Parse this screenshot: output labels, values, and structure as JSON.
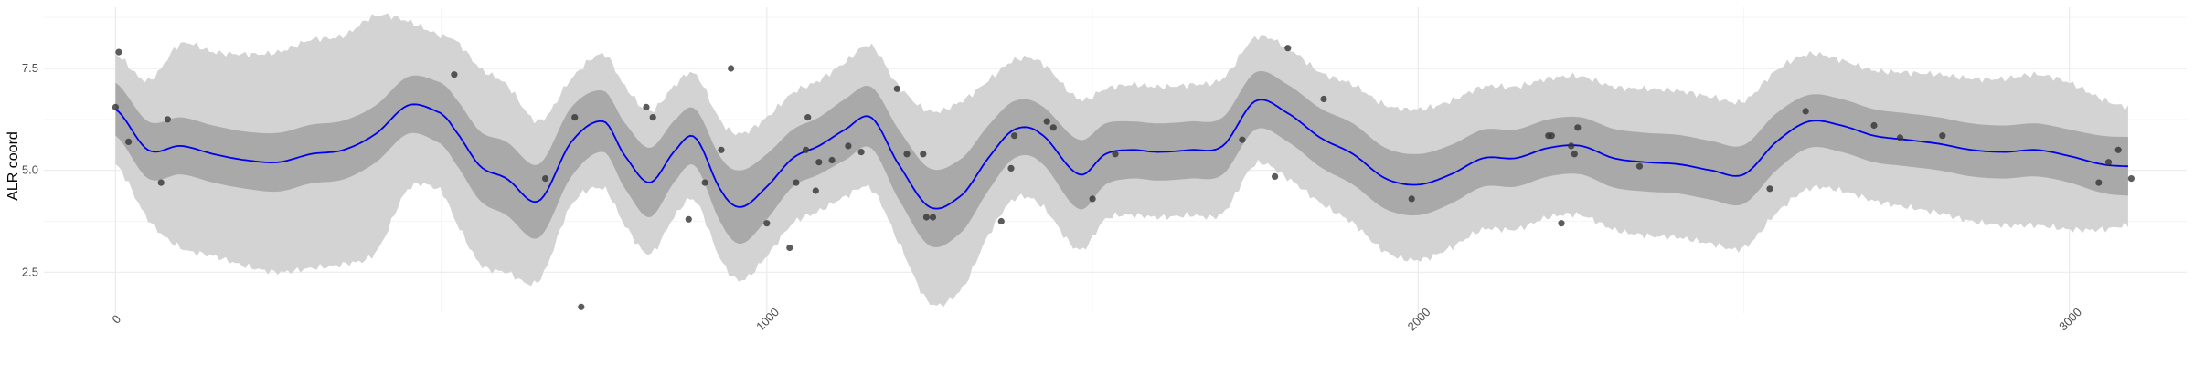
{
  "chart_data": {
    "type": "line",
    "title": "",
    "xlabel": "",
    "ylabel": "ALR coord",
    "xlim": [
      -110,
      3180
    ],
    "ylim": [
      1.5,
      9.0
    ],
    "x_ticks": [
      0,
      1000,
      2000,
      3000
    ],
    "x_tick_labels": [
      "0",
      "1000",
      "2000",
      "3000"
    ],
    "y_ticks": [
      2.5,
      5.0,
      7.5
    ],
    "y_tick_labels": [
      "2.5",
      "5.0",
      "7.5"
    ],
    "grid": true,
    "legend": "none",
    "colors": {
      "line": "#0000ee",
      "inner_band": "#a9a9a9",
      "outer_band": "#d3d3d3",
      "points": "#333333",
      "grid_major": "#ebebeb",
      "grid_minor": "#f5f5f5"
    },
    "mean_x": [
      0,
      50,
      100,
      150,
      200,
      250,
      300,
      350,
      400,
      450,
      500,
      520,
      560,
      600,
      650,
      700,
      750,
      780,
      820,
      860,
      890,
      930,
      960,
      1000,
      1040,
      1080,
      1120,
      1160,
      1200,
      1250,
      1300,
      1340,
      1380,
      1420,
      1480,
      1520,
      1560,
      1600,
      1650,
      1700,
      1750,
      1800,
      1850,
      1900,
      1950,
      2000,
      2050,
      2100,
      2150,
      2200,
      2250,
      2300,
      2350,
      2400,
      2450,
      2500,
      2550,
      2600,
      2650,
      2700,
      2750,
      2800,
      2850,
      2900,
      2950,
      3000,
      3050,
      3090
    ],
    "mean": [
      6.5,
      5.5,
      5.6,
      5.4,
      5.25,
      5.2,
      5.4,
      5.5,
      5.9,
      6.6,
      6.4,
      6.0,
      5.1,
      4.8,
      4.25,
      5.7,
      6.2,
      5.4,
      4.7,
      5.5,
      5.8,
      4.5,
      4.1,
      4.6,
      5.3,
      5.6,
      6.0,
      6.3,
      5.2,
      4.1,
      4.4,
      5.3,
      6.0,
      5.9,
      4.9,
      5.4,
      5.5,
      5.45,
      5.5,
      5.6,
      6.7,
      6.4,
      5.8,
      5.4,
      4.8,
      4.65,
      4.9,
      5.3,
      5.3,
      5.55,
      5.6,
      5.3,
      5.2,
      5.15,
      5.0,
      4.9,
      5.7,
      6.2,
      6.1,
      5.85,
      5.75,
      5.65,
      5.5,
      5.45,
      5.5,
      5.35,
      5.15,
      5.1
    ],
    "inner_band_halfwidth": [
      0.65,
      0.7,
      0.7,
      0.7,
      0.7,
      0.72,
      0.72,
      0.72,
      0.7,
      0.7,
      0.75,
      0.8,
      0.85,
      0.9,
      0.9,
      0.85,
      0.75,
      0.8,
      0.85,
      0.75,
      0.7,
      0.8,
      0.9,
      0.8,
      0.7,
      0.7,
      0.75,
      0.75,
      0.85,
      0.95,
      0.9,
      0.8,
      0.7,
      0.7,
      0.85,
      0.75,
      0.7,
      0.7,
      0.7,
      0.7,
      0.7,
      0.7,
      0.72,
      0.75,
      0.75,
      0.75,
      0.72,
      0.7,
      0.7,
      0.7,
      0.7,
      0.72,
      0.72,
      0.72,
      0.72,
      0.72,
      0.7,
      0.65,
      0.65,
      0.65,
      0.65,
      0.65,
      0.65,
      0.65,
      0.65,
      0.65,
      0.7,
      0.72
    ],
    "outer_band_halfwidth": [
      1.35,
      1.7,
      2.5,
      2.5,
      2.6,
      2.7,
      2.8,
      2.8,
      2.9,
      2.05,
      1.9,
      2.2,
      2.4,
      2.3,
      1.95,
      1.55,
      1.65,
      1.7,
      1.75,
      1.6,
      1.55,
      1.7,
      1.8,
      1.7,
      1.6,
      1.6,
      1.65,
      1.75,
      1.9,
      2.35,
      2.3,
      1.9,
      1.7,
      1.75,
      1.85,
      1.6,
      1.6,
      1.6,
      1.6,
      1.65,
      1.55,
      1.6,
      1.6,
      1.7,
      1.8,
      1.85,
      1.8,
      1.75,
      1.75,
      1.7,
      1.7,
      1.75,
      1.8,
      1.8,
      1.8,
      1.8,
      1.75,
      1.65,
      1.6,
      1.6,
      1.65,
      1.7,
      1.75,
      1.8,
      1.85,
      1.8,
      1.6,
      1.45
    ],
    "points": [
      {
        "x": 0,
        "y": 6.55
      },
      {
        "x": 5,
        "y": 7.9
      },
      {
        "x": 20,
        "y": 5.7
      },
      {
        "x": 70,
        "y": 4.7
      },
      {
        "x": 80,
        "y": 6.25
      },
      {
        "x": 520,
        "y": 7.35
      },
      {
        "x": 660,
        "y": 4.8
      },
      {
        "x": 705,
        "y": 6.3
      },
      {
        "x": 715,
        "y": 1.65
      },
      {
        "x": 815,
        "y": 6.55
      },
      {
        "x": 825,
        "y": 6.3
      },
      {
        "x": 880,
        "y": 3.8
      },
      {
        "x": 905,
        "y": 4.7
      },
      {
        "x": 930,
        "y": 5.5
      },
      {
        "x": 945,
        "y": 7.5
      },
      {
        "x": 1000,
        "y": 3.7
      },
      {
        "x": 1035,
        "y": 3.1
      },
      {
        "x": 1045,
        "y": 4.7
      },
      {
        "x": 1060,
        "y": 5.5
      },
      {
        "x": 1063,
        "y": 6.3
      },
      {
        "x": 1075,
        "y": 4.5
      },
      {
        "x": 1080,
        "y": 5.2
      },
      {
        "x": 1100,
        "y": 5.25
      },
      {
        "x": 1125,
        "y": 5.6
      },
      {
        "x": 1145,
        "y": 5.45
      },
      {
        "x": 1200,
        "y": 7.0
      },
      {
        "x": 1215,
        "y": 5.4
      },
      {
        "x": 1240,
        "y": 5.4
      },
      {
        "x": 1245,
        "y": 3.85
      },
      {
        "x": 1255,
        "y": 3.85
      },
      {
        "x": 1360,
        "y": 3.75
      },
      {
        "x": 1375,
        "y": 5.05
      },
      {
        "x": 1380,
        "y": 5.85
      },
      {
        "x": 1430,
        "y": 6.2
      },
      {
        "x": 1440,
        "y": 6.05
      },
      {
        "x": 1500,
        "y": 4.3
      },
      {
        "x": 1535,
        "y": 5.4
      },
      {
        "x": 1730,
        "y": 5.75
      },
      {
        "x": 1780,
        "y": 4.85
      },
      {
        "x": 1800,
        "y": 8.0
      },
      {
        "x": 1855,
        "y": 6.75
      },
      {
        "x": 1990,
        "y": 4.3
      },
      {
        "x": 2200,
        "y": 5.85
      },
      {
        "x": 2205,
        "y": 5.85
      },
      {
        "x": 2220,
        "y": 3.7
      },
      {
        "x": 2235,
        "y": 5.6
      },
      {
        "x": 2240,
        "y": 5.4
      },
      {
        "x": 2245,
        "y": 6.05
      },
      {
        "x": 2340,
        "y": 5.1
      },
      {
        "x": 2540,
        "y": 4.55
      },
      {
        "x": 2595,
        "y": 6.45
      },
      {
        "x": 2700,
        "y": 6.1
      },
      {
        "x": 2740,
        "y": 5.8
      },
      {
        "x": 2805,
        "y": 5.85
      },
      {
        "x": 3045,
        "y": 4.7
      },
      {
        "x": 3060,
        "y": 5.2
      },
      {
        "x": 3075,
        "y": 5.5
      },
      {
        "x": 3095,
        "y": 4.8
      }
    ]
  }
}
